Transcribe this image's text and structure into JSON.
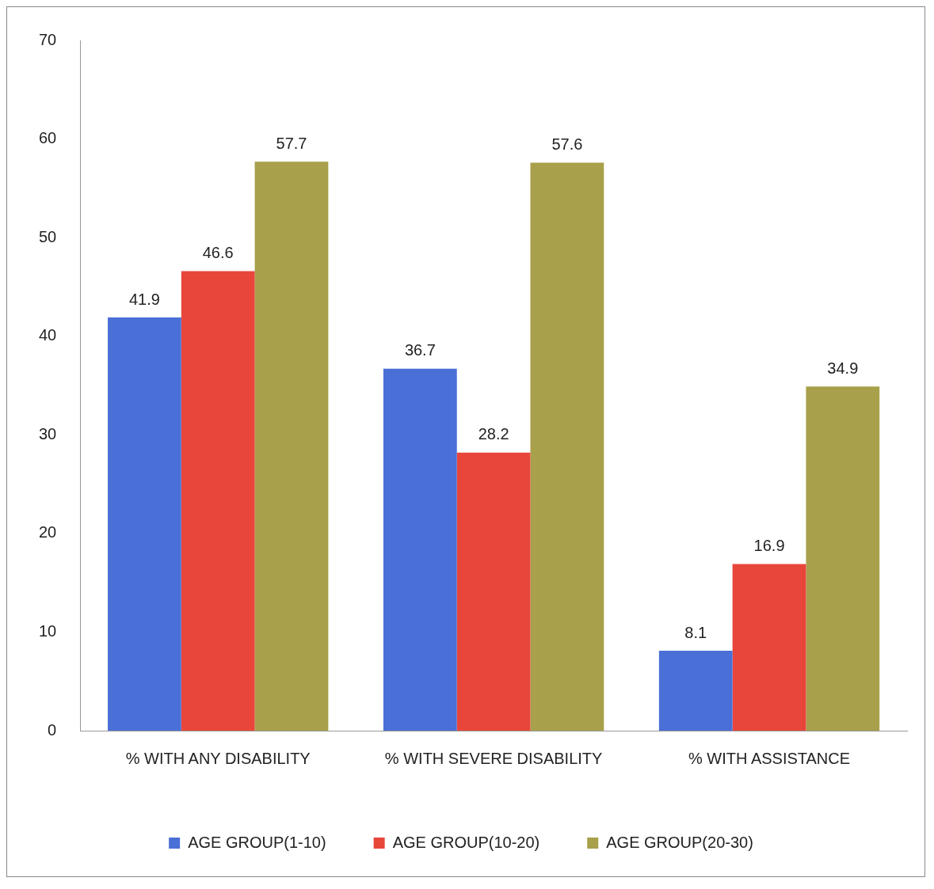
{
  "chart_data": {
    "type": "bar",
    "categories": [
      "% WITH ANY DISABILITY",
      "% WITH SEVERE DISABILITY",
      "% WITH ASSISTANCE"
    ],
    "series": [
      {
        "name": "AGE GROUP(1-10)",
        "color": "#4a6fd6",
        "values": [
          41.9,
          36.7,
          8.1
        ]
      },
      {
        "name": "AGE GROUP(10-20)",
        "color": "#e8463a",
        "values": [
          46.6,
          28.2,
          16.9
        ]
      },
      {
        "name": "AGE GROUP(20-30)",
        "color": "#a8a04a",
        "values": [
          57.7,
          57.6,
          34.9
        ]
      }
    ],
    "ylim": [
      0,
      70
    ],
    "yticks": [
      0,
      10,
      20,
      30,
      40,
      50,
      60,
      70
    ],
    "grid": false,
    "legend": "bottom",
    "data_labels": true
  }
}
